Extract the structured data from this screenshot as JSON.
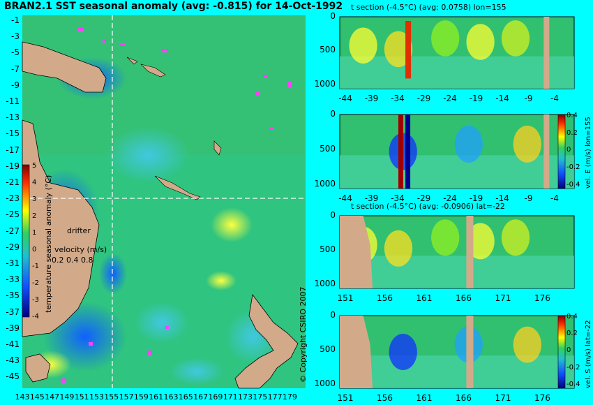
{
  "main_title": "BRAN2.1 SST seasonal anomaly (avg: -0.815) for 14-Oct-1992",
  "copyright": "© Copyright CSIRO 2007",
  "colors": {
    "background": "#00ffff",
    "land": "#d2aa8a",
    "ocean": "#2fc47f",
    "cross": "#ffffff"
  },
  "map": {
    "y_ticks": [
      "-1",
      "-3",
      "-5",
      "-7",
      "-9",
      "-11",
      "-13",
      "-15",
      "-17",
      "-19",
      "-21",
      "-23",
      "-25",
      "-27",
      "-29",
      "-31",
      "-33",
      "-35",
      "-37",
      "-39",
      "-41",
      "-43",
      "-45"
    ],
    "x_ticks": [
      "143",
      "145",
      "147",
      "149",
      "151",
      "153",
      "155",
      "157",
      "159",
      "161",
      "163",
      "165",
      "167",
      "169",
      "171",
      "173",
      "175",
      "177",
      "179"
    ],
    "colorbar_label": "temperature seasonal anomaly (°C)",
    "colorbar_ticks": [
      "5",
      "4",
      "3",
      "2",
      "1",
      "0",
      "-1",
      "-2",
      "-3",
      "-4"
    ],
    "drifter_label": "drifter",
    "velocity_label": "velocity (m/s)",
    "velocity_ticks": "0.2 0.4 0.8"
  },
  "panels": [
    {
      "title": "t section (-4.5°C) (avg: 0.0758) lon=155",
      "y_ticks": [
        "0",
        "500",
        "1000"
      ],
      "x_ticks": [
        "-44",
        "-39",
        "-34",
        "-29",
        "-24",
        "-19",
        "-14",
        "-9",
        "-4"
      ],
      "side_label": "",
      "cb_ticks": []
    },
    {
      "title": "",
      "y_ticks": [
        "0",
        "500",
        "1000"
      ],
      "x_ticks": [
        "-44",
        "-39",
        "-34",
        "-29",
        "-24",
        "-19",
        "-14",
        "-9",
        "-4"
      ],
      "side_label": "vel. E (m/s) lon=155",
      "cb_ticks": [
        "0.4",
        "0.2",
        "0",
        "-0.2",
        "-0.4"
      ]
    },
    {
      "title": "t section (-4.5°C) (avg: -0.0906) lat=-22",
      "y_ticks": [
        "0",
        "500",
        "1000"
      ],
      "x_ticks": [
        "151",
        "156",
        "161",
        "166",
        "171",
        "176"
      ],
      "side_label": "",
      "cb_ticks": []
    },
    {
      "title": "",
      "y_ticks": [
        "0",
        "500",
        "1000"
      ],
      "x_ticks": [
        "151",
        "156",
        "161",
        "166",
        "171",
        "176"
      ],
      "side_label": "vel. S (m/s) lat=-22",
      "cb_ticks": [
        "0.4",
        "0.2",
        "0",
        "-0.2",
        "-0.4"
      ]
    }
  ],
  "chart_data": [
    {
      "type": "heatmap",
      "title": "BRAN2.1 SST seasonal anomaly (avg: -0.815) for 14-Oct-1992",
      "xlabel": "",
      "ylabel": "",
      "xlim": [
        142,
        180
      ],
      "ylim": [
        -45,
        0
      ],
      "colorbar_label": "temperature seasonal anomaly (°C)",
      "colorbar_range": [
        -4,
        5
      ]
    },
    {
      "type": "heatmap",
      "title": "t section (-4.5°C) (avg: 0.0758) lon=155",
      "xlim": [
        -45,
        0
      ],
      "ylim": [
        1050,
        0
      ]
    },
    {
      "type": "heatmap",
      "title": "",
      "side_label": "vel. E (m/s) lon=155",
      "xlim": [
        -45,
        0
      ],
      "ylim": [
        1050,
        0
      ],
      "colorbar_range": [
        -0.4,
        0.4
      ]
    },
    {
      "type": "heatmap",
      "title": "t section (-4.5°C) (avg: -0.0906) lat=-22",
      "xlim": [
        150,
        180
      ],
      "ylim": [
        1050,
        0
      ]
    },
    {
      "type": "heatmap",
      "title": "",
      "side_label": "vel. S (m/s) lat=-22",
      "xlim": [
        150,
        180
      ],
      "ylim": [
        1050,
        0
      ],
      "colorbar_range": [
        -0.4,
        0.4
      ]
    }
  ]
}
